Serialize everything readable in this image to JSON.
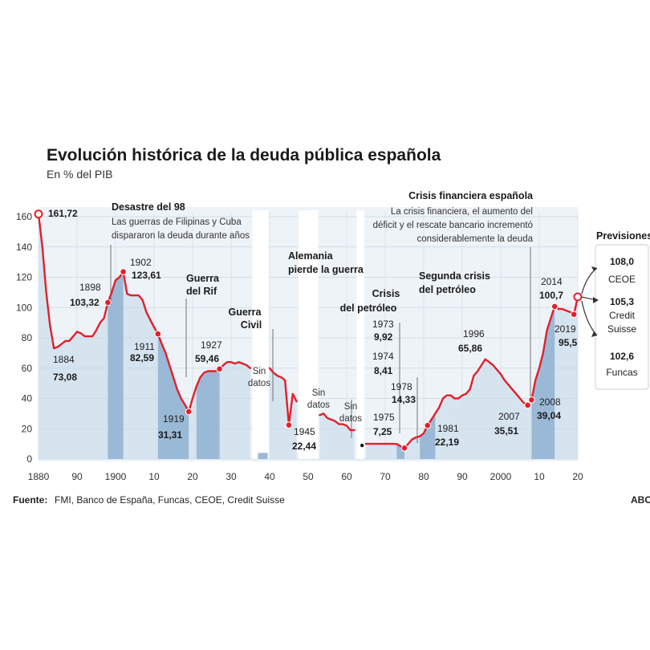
{
  "chart_data": {
    "type": "line",
    "title": "Evolución histórica de la deuda pública española",
    "subtitle": "En % del PIB",
    "xlim": [
      1880,
      2020
    ],
    "ylim": [
      0,
      160
    ],
    "yticks": [
      0,
      20,
      40,
      60,
      80,
      100,
      120,
      140,
      160
    ],
    "xticks": [
      {
        "value": 1880,
        "label": "1880"
      },
      {
        "value": 1890,
        "label": "90"
      },
      {
        "value": 1900,
        "label": "1900"
      },
      {
        "value": 1910,
        "label": "10"
      },
      {
        "value": 1920,
        "label": "20"
      },
      {
        "value": 1930,
        "label": "30"
      },
      {
        "value": 1940,
        "label": "40"
      },
      {
        "value": 1950,
        "label": "50"
      },
      {
        "value": 1960,
        "label": "60"
      },
      {
        "value": 1970,
        "label": "70"
      },
      {
        "value": 1980,
        "label": "80"
      },
      {
        "value": 1990,
        "label": "90"
      },
      {
        "value": 2000,
        "label": "2000"
      },
      {
        "value": 2010,
        "label": "10"
      },
      {
        "value": 2020,
        "label": "20"
      }
    ],
    "grid": true,
    "line_color": "#e1202a",
    "segments": [
      [
        [
          1880,
          161.72
        ],
        [
          1881,
          140
        ],
        [
          1882,
          110
        ],
        [
          1883,
          88
        ],
        [
          1884,
          73.08
        ],
        [
          1885,
          74
        ],
        [
          1886,
          76
        ],
        [
          1887,
          78
        ],
        [
          1888,
          78
        ],
        [
          1889,
          81
        ],
        [
          1890,
          84
        ],
        [
          1891,
          83
        ],
        [
          1892,
          81
        ],
        [
          1893,
          81
        ],
        [
          1894,
          81
        ],
        [
          1895,
          85
        ],
        [
          1896,
          90
        ],
        [
          1897,
          93
        ],
        [
          1898,
          103.32
        ],
        [
          1899,
          110
        ],
        [
          1900,
          118
        ],
        [
          1901,
          120
        ],
        [
          1902,
          123.61
        ],
        [
          1903,
          109
        ],
        [
          1904,
          108
        ],
        [
          1905,
          108
        ],
        [
          1906,
          108
        ],
        [
          1907,
          105
        ],
        [
          1908,
          97
        ],
        [
          1909,
          92
        ],
        [
          1910,
          87
        ],
        [
          1911,
          82.59
        ],
        [
          1912,
          76
        ],
        [
          1913,
          70
        ],
        [
          1914,
          62
        ],
        [
          1915,
          54
        ],
        [
          1916,
          46
        ],
        [
          1917,
          40
        ],
        [
          1918,
          36
        ],
        [
          1919,
          31.31
        ],
        [
          1920,
          40
        ],
        [
          1921,
          48
        ],
        [
          1922,
          54
        ],
        [
          1923,
          57
        ],
        [
          1924,
          58
        ],
        [
          1925,
          58
        ],
        [
          1926,
          58
        ],
        [
          1927,
          59.46
        ],
        [
          1928,
          62
        ],
        [
          1929,
          64
        ],
        [
          1930,
          64
        ],
        [
          1931,
          63
        ],
        [
          1932,
          64
        ],
        [
          1933,
          63
        ],
        [
          1934,
          62
        ],
        [
          1935,
          60
        ]
      ],
      [
        [
          1940,
          60
        ],
        [
          1941,
          57
        ],
        [
          1942,
          55
        ],
        [
          1943,
          54
        ],
        [
          1944,
          52
        ],
        [
          1945,
          22.44
        ],
        [
          1946,
          43
        ],
        [
          1947,
          38
        ]
      ],
      [
        [
          1953,
          29
        ],
        [
          1954,
          30
        ],
        [
          1955,
          27
        ],
        [
          1956,
          26
        ],
        [
          1957,
          25
        ],
        [
          1958,
          23
        ],
        [
          1959,
          23
        ],
        [
          1960,
          22
        ],
        [
          1961,
          19
        ],
        [
          1962,
          19
        ]
      ],
      [
        [
          1965,
          10
        ],
        [
          1966,
          10
        ],
        [
          1967,
          10
        ],
        [
          1968,
          10
        ],
        [
          1969,
          10
        ],
        [
          1970,
          10
        ],
        [
          1971,
          10
        ],
        [
          1972,
          10
        ],
        [
          1973,
          9.92
        ],
        [
          1974,
          8.41
        ],
        [
          1975,
          7.25
        ],
        [
          1976,
          10
        ],
        [
          1977,
          13
        ],
        [
          1978,
          14.33
        ],
        [
          1979,
          15
        ],
        [
          1980,
          17
        ],
        [
          1981,
          22.19
        ],
        [
          1982,
          26
        ],
        [
          1983,
          30
        ],
        [
          1984,
          34
        ],
        [
          1985,
          40
        ],
        [
          1986,
          42
        ],
        [
          1987,
          42
        ],
        [
          1988,
          40
        ],
        [
          1989,
          40
        ],
        [
          1990,
          42
        ],
        [
          1991,
          43
        ],
        [
          1992,
          46
        ],
        [
          1993,
          55
        ],
        [
          1994,
          58
        ],
        [
          1995,
          62
        ],
        [
          1996,
          65.86
        ],
        [
          1997,
          64
        ],
        [
          1998,
          62
        ],
        [
          1999,
          59
        ],
        [
          2000,
          56
        ],
        [
          2001,
          52
        ],
        [
          2002,
          49
        ],
        [
          2003,
          46
        ],
        [
          2004,
          43
        ],
        [
          2005,
          40
        ],
        [
          2006,
          37
        ],
        [
          2007,
          35.51
        ],
        [
          2008,
          39.04
        ],
        [
          2009,
          52
        ],
        [
          2010,
          60
        ],
        [
          2011,
          70
        ],
        [
          2012,
          85
        ],
        [
          2013,
          93
        ],
        [
          2014,
          100.7
        ],
        [
          2015,
          99
        ],
        [
          2016,
          99
        ],
        [
          2017,
          98
        ],
        [
          2018,
          97
        ],
        [
          2019,
          95.5
        ],
        [
          2020,
          107
        ]
      ]
    ],
    "marker_points": [
      {
        "x": 1880,
        "y": 161.72,
        "type": "open"
      },
      {
        "x": 1898,
        "y": 103.32,
        "type": "dot"
      },
      {
        "x": 1902,
        "y": 123.61,
        "type": "dot"
      },
      {
        "x": 1911,
        "y": 82.59,
        "type": "dot"
      },
      {
        "x": 1919,
        "y": 31.31,
        "type": "dot"
      },
      {
        "x": 1927,
        "y": 59.46,
        "type": "dot"
      },
      {
        "x": 1945,
        "y": 22.44,
        "type": "dot"
      },
      {
        "x": 1975,
        "y": 7.25,
        "type": "dot"
      },
      {
        "x": 1981,
        "y": 22.19,
        "type": "dot"
      },
      {
        "x": 2007,
        "y": 35.51,
        "type": "dot"
      },
      {
        "x": 2008,
        "y": 39.04,
        "type": "dot"
      },
      {
        "x": 2014,
        "y": 100.7,
        "type": "dot"
      },
      {
        "x": 2019,
        "y": 95.5,
        "type": "dot"
      },
      {
        "x": 2020,
        "y": 107,
        "type": "open"
      },
      {
        "x": 1964,
        "y": 9,
        "type": "small"
      }
    ],
    "shaded_periods": [
      {
        "from": 1898,
        "to": 1902
      },
      {
        "from": 1911,
        "to": 1919
      },
      {
        "from": 1921,
        "to": 1927
      },
      {
        "from": 1936,
        "to": 1939
      },
      {
        "from": 1973,
        "to": 1975
      },
      {
        "from": 1979,
        "to": 1983
      },
      {
        "from": 2008,
        "to": 2014
      }
    ],
    "value_labels": [
      {
        "year": "",
        "value": "161,72"
      },
      {
        "year": "1884",
        "value": "73,08"
      },
      {
        "year": "1898",
        "value": "103,32"
      },
      {
        "year": "1902",
        "value": "123,61"
      },
      {
        "year": "1911",
        "value": "82,59"
      },
      {
        "year": "1919",
        "value": "31,31"
      },
      {
        "year": "1927",
        "value": "59,46"
      },
      {
        "year": "1945",
        "value": "22,44"
      },
      {
        "year": "1973",
        "value": "9,92"
      },
      {
        "year": "1974",
        "value": "8,41"
      },
      {
        "year": "1975",
        "value": "7,25"
      },
      {
        "year": "1978",
        "value": "14,33"
      },
      {
        "year": "1981",
        "value": "22,19"
      },
      {
        "year": "1996",
        "value": "65,86"
      },
      {
        "year": "2007",
        "value": "35,51"
      },
      {
        "year": "2008",
        "value": "39,04"
      },
      {
        "year": "2014",
        "value": "100,7"
      },
      {
        "year": "2019",
        "value": "95,5"
      }
    ],
    "annotations": [
      {
        "title": "Desastre del 98",
        "text": [
          "Las guerras de Filipinas y Cuba",
          "dispararon la deuda durante años"
        ]
      },
      {
        "title": "Guerra del Rif",
        "text": []
      },
      {
        "title": "Guerra Civil",
        "text": []
      },
      {
        "title": "Alemania pierde la guerra",
        "text": []
      },
      {
        "title": "Crisis del petróleo",
        "text": []
      },
      {
        "title": "Segunda crisis del petróleo",
        "text": []
      },
      {
        "title": "Crisis financiera española",
        "text": [
          "La crisis financiera, el aumento del",
          "déficit y el rescate bancario incrementó",
          "considerablemente la deuda"
        ]
      }
    ],
    "no_data_label": "Sin datos",
    "forecasts": {
      "title": "Previsiones",
      "items": [
        {
          "value": "108,0",
          "source": "CEOE"
        },
        {
          "value": "105,3",
          "source": "Credit Suisse"
        },
        {
          "value": "102,6",
          "source": "Funcas"
        }
      ]
    },
    "source_label": "Fuente:",
    "source_text": "FMI, Banco de España, Funcas, CEOE, Credit Suisse",
    "publisher": "ABC"
  }
}
